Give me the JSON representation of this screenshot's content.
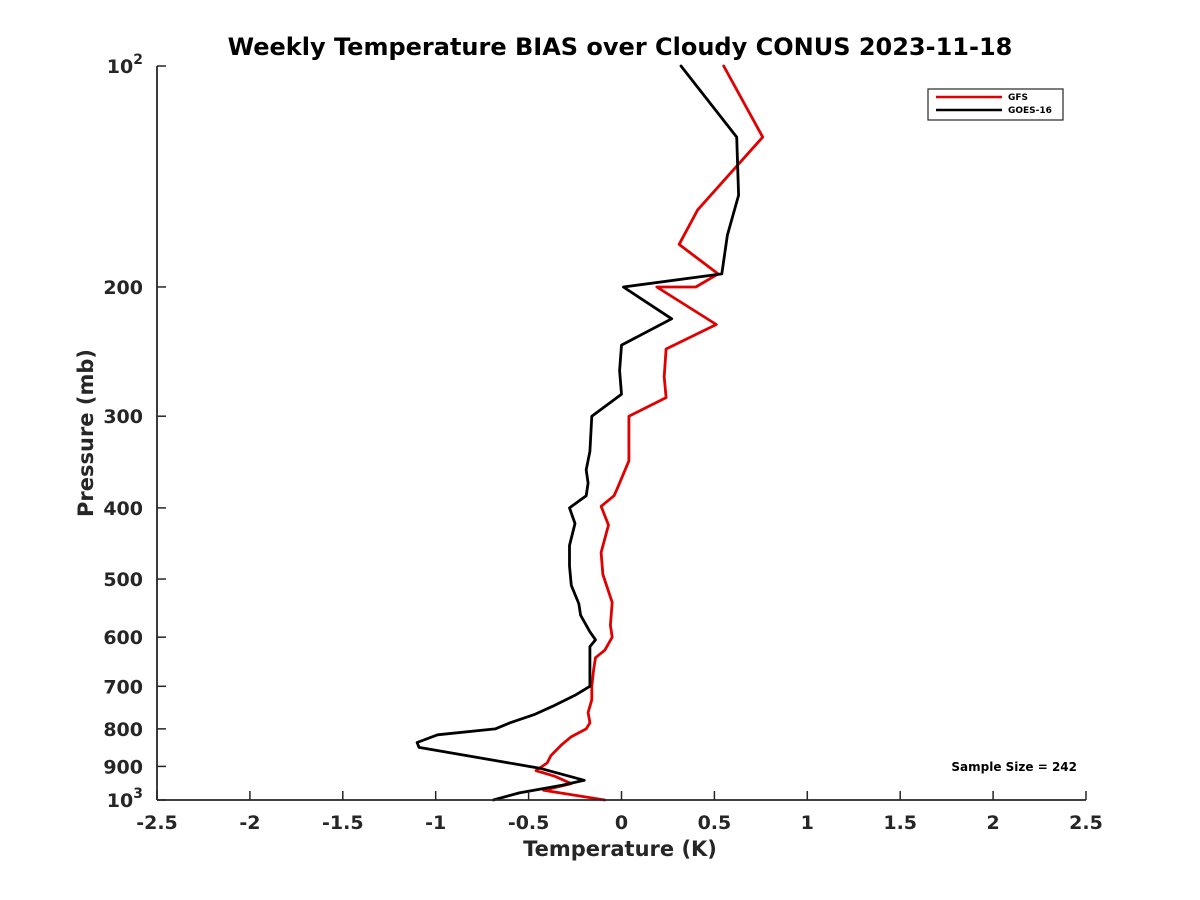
{
  "chart_data": {
    "type": "line",
    "title": "Weekly Temperature BIAS over Cloudy CONUS 2023-11-18",
    "xlabel": "Temperature (K)",
    "ylabel": "Pressure (mb)",
    "xlim": [
      -2.5,
      2.5
    ],
    "ylim": [
      100,
      1000
    ],
    "y_scale": "log",
    "y_reversed": true,
    "grid": false,
    "legend_position": "top-right",
    "x_ticks": [
      "-2.5",
      "-2",
      "-1.5",
      "-1",
      "-0.5",
      "0",
      "0.5",
      "1",
      "1.5",
      "2",
      "2.5"
    ],
    "y_ticks": [
      {
        "value": 100,
        "base": "10",
        "exp": "2"
      },
      {
        "value": 200,
        "label": "200"
      },
      {
        "value": 300,
        "label": "300"
      },
      {
        "value": 400,
        "label": "400"
      },
      {
        "value": 500,
        "label": "500"
      },
      {
        "value": 600,
        "label": "600"
      },
      {
        "value": 700,
        "label": "700"
      },
      {
        "value": 800,
        "label": "800"
      },
      {
        "value": 900,
        "label": "900"
      },
      {
        "value": 1000,
        "base": "10",
        "exp": "3"
      }
    ],
    "series": [
      {
        "name": "GFS",
        "color": "#e00000",
        "points": [
          [
            0.55,
            100
          ],
          [
            0.76,
            125
          ],
          [
            0.41,
            157
          ],
          [
            0.31,
            175
          ],
          [
            0.52,
            192
          ],
          [
            0.4,
            200
          ],
          [
            0.19,
            200
          ],
          [
            0.51,
            225
          ],
          [
            0.24,
            243
          ],
          [
            0.23,
            265
          ],
          [
            0.24,
            283
          ],
          [
            0.04,
            300
          ],
          [
            0.04,
            345
          ],
          [
            -0.02,
            375
          ],
          [
            -0.04,
            385
          ],
          [
            -0.11,
            398
          ],
          [
            -0.07,
            422
          ],
          [
            -0.11,
            460
          ],
          [
            -0.1,
            493
          ],
          [
            -0.05,
            538
          ],
          [
            -0.06,
            578
          ],
          [
            -0.05,
            600
          ],
          [
            -0.09,
            625
          ],
          [
            -0.14,
            640
          ],
          [
            -0.15,
            665
          ],
          [
            -0.16,
            700
          ],
          [
            -0.16,
            730
          ],
          [
            -0.18,
            760
          ],
          [
            -0.17,
            785
          ],
          [
            -0.19,
            800
          ],
          [
            -0.27,
            820
          ],
          [
            -0.32,
            840
          ],
          [
            -0.38,
            870
          ],
          [
            -0.4,
            890
          ],
          [
            -0.46,
            912
          ],
          [
            -0.36,
            928
          ],
          [
            -0.27,
            950
          ],
          [
            -0.42,
            970
          ],
          [
            -0.09,
            1000
          ]
        ]
      },
      {
        "name": "GOES-16",
        "color": "#000000",
        "points": [
          [
            0.32,
            100
          ],
          [
            0.62,
            125
          ],
          [
            0.63,
            150
          ],
          [
            0.57,
            170
          ],
          [
            0.54,
            192
          ],
          [
            0.01,
            200
          ],
          [
            0.27,
            221
          ],
          [
            0.0,
            240
          ],
          [
            -0.01,
            260
          ],
          [
            0.0,
            280
          ],
          [
            -0.16,
            300
          ],
          [
            -0.17,
            335
          ],
          [
            -0.19,
            355
          ],
          [
            -0.18,
            370
          ],
          [
            -0.19,
            385
          ],
          [
            -0.28,
            400
          ],
          [
            -0.25,
            420
          ],
          [
            -0.28,
            450
          ],
          [
            -0.28,
            480
          ],
          [
            -0.27,
            510
          ],
          [
            -0.23,
            540
          ],
          [
            -0.22,
            560
          ],
          [
            -0.17,
            590
          ],
          [
            -0.14,
            605
          ],
          [
            -0.17,
            618
          ],
          [
            -0.17,
            650
          ],
          [
            -0.17,
            700
          ],
          [
            -0.25,
            720
          ],
          [
            -0.37,
            745
          ],
          [
            -0.47,
            765
          ],
          [
            -0.6,
            785
          ],
          [
            -0.68,
            800
          ],
          [
            -0.99,
            815
          ],
          [
            -1.1,
            835
          ],
          [
            -1.09,
            848
          ],
          [
            -0.44,
            905
          ],
          [
            -0.2,
            940
          ],
          [
            -0.32,
            955
          ],
          [
            -0.55,
            978
          ],
          [
            -0.69,
            1000
          ]
        ]
      }
    ],
    "annotations": [
      {
        "text": "Sample Size = 242"
      }
    ]
  }
}
